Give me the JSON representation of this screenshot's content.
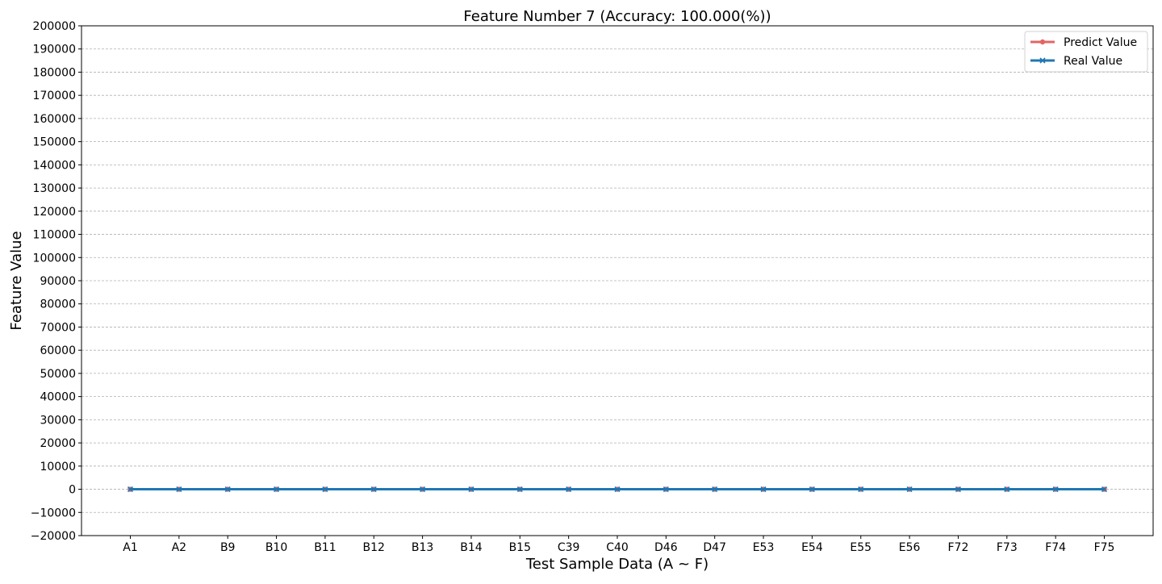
{
  "chart_data": {
    "type": "line",
    "title": "Feature Number 7 (Accuracy: 100.000(%))",
    "xlabel": "Test Sample Data (A ~ F)",
    "ylabel": "Feature Value",
    "categories": [
      "A1",
      "A2",
      "B9",
      "B10",
      "B11",
      "B12",
      "B13",
      "B14",
      "B15",
      "C39",
      "C40",
      "D46",
      "D47",
      "E53",
      "E54",
      "E55",
      "E56",
      "F72",
      "F73",
      "F74",
      "F75"
    ],
    "ylim": [
      -20000,
      200000
    ],
    "yticks": [
      -20000,
      -10000,
      0,
      10000,
      20000,
      30000,
      40000,
      50000,
      60000,
      70000,
      80000,
      90000,
      100000,
      110000,
      120000,
      130000,
      140000,
      150000,
      160000,
      170000,
      180000,
      190000,
      200000
    ],
    "ytick_labels": [
      "−20000",
      "−10000",
      "0",
      "10000",
      "20000",
      "30000",
      "40000",
      "50000",
      "60000",
      "70000",
      "80000",
      "90000",
      "100000",
      "110000",
      "120000",
      "130000",
      "140000",
      "150000",
      "160000",
      "170000",
      "180000",
      "190000",
      "200000"
    ],
    "grid": "horizontal-dashed",
    "legend_position": "top-right",
    "series": [
      {
        "name": "Predict Value",
        "color": "#e06666",
        "marker": "circle",
        "values": [
          0,
          0,
          0,
          0,
          0,
          0,
          0,
          0,
          0,
          0,
          0,
          0,
          0,
          0,
          0,
          0,
          0,
          0,
          0,
          0,
          0
        ]
      },
      {
        "name": "Real Value",
        "color": "#1f77b4",
        "marker": "x",
        "values": [
          0,
          0,
          0,
          0,
          0,
          0,
          0,
          0,
          0,
          0,
          0,
          0,
          0,
          0,
          0,
          0,
          0,
          0,
          0,
          0,
          0
        ]
      }
    ]
  }
}
